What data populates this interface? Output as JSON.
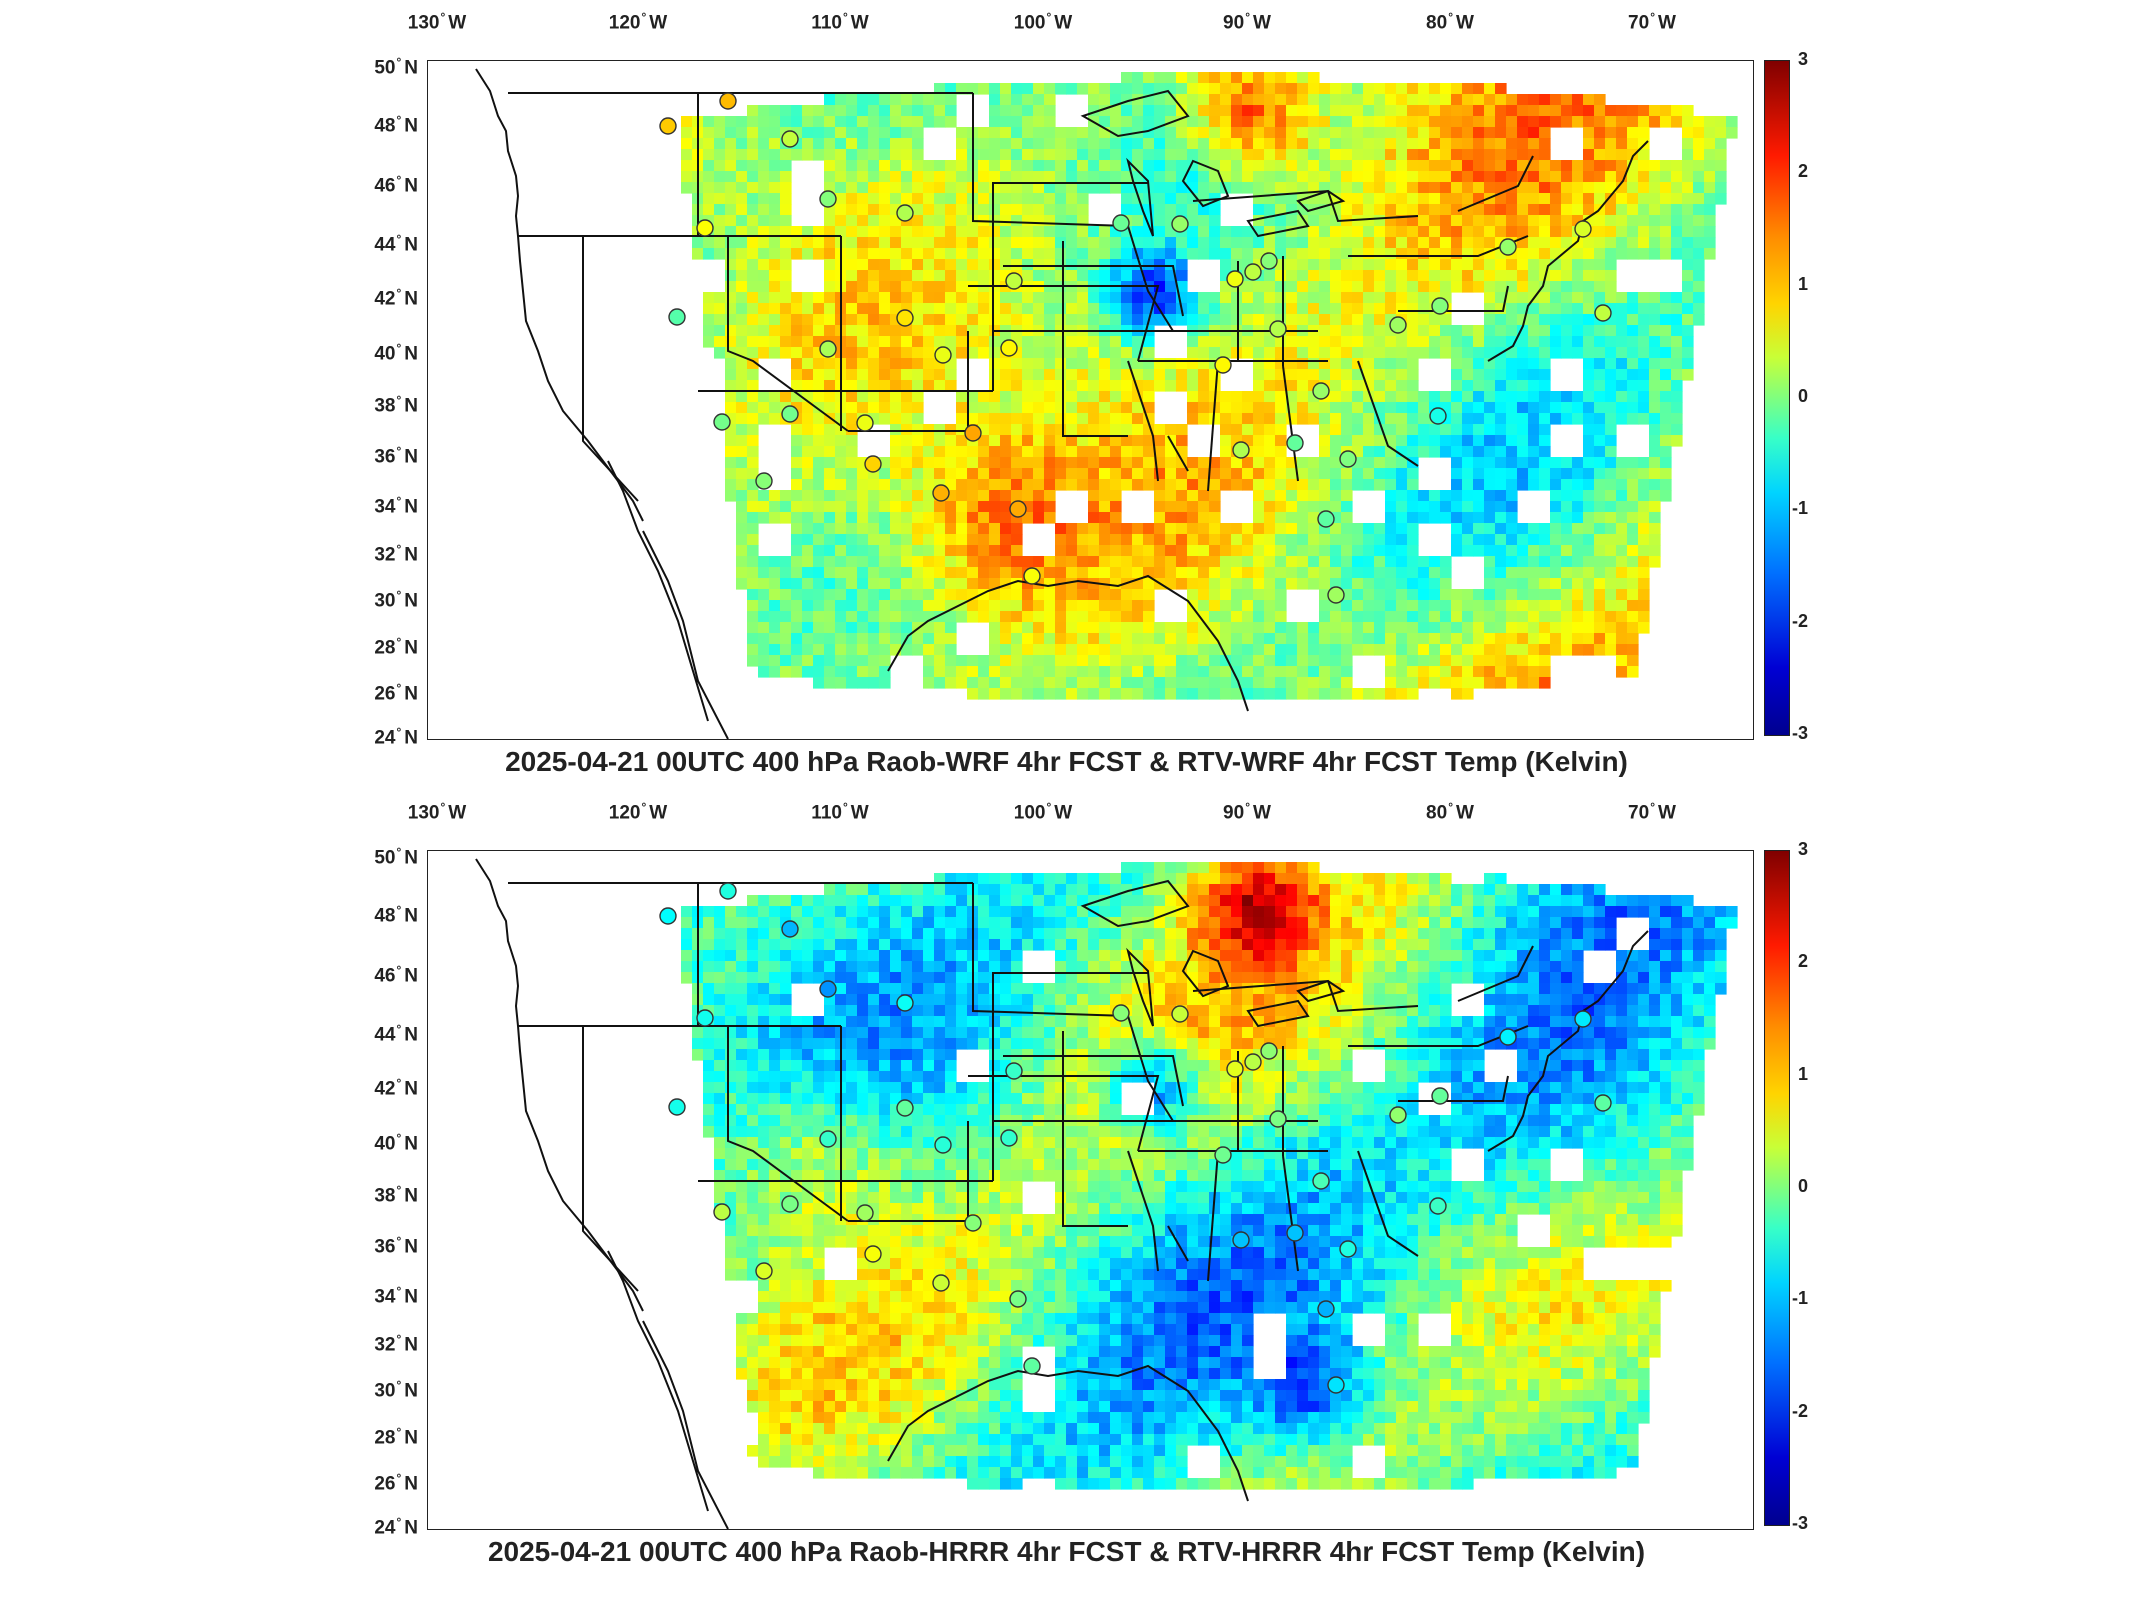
{
  "lon_ticks": [
    {
      "deg": "130",
      "hem": "W"
    },
    {
      "deg": "120",
      "hem": "W"
    },
    {
      "deg": "110",
      "hem": "W"
    },
    {
      "deg": "100",
      "hem": "W"
    },
    {
      "deg": "90",
      "hem": "W"
    },
    {
      "deg": "80",
      "hem": "W"
    },
    {
      "deg": "70",
      "hem": "W"
    }
  ],
  "lat_ticks": [
    {
      "deg": "50",
      "hem": "N"
    },
    {
      "deg": "48",
      "hem": "N"
    },
    {
      "deg": "46",
      "hem": "N"
    },
    {
      "deg": "44",
      "hem": "N"
    },
    {
      "deg": "42",
      "hem": "N"
    },
    {
      "deg": "40",
      "hem": "N"
    },
    {
      "deg": "38",
      "hem": "N"
    },
    {
      "deg": "36",
      "hem": "N"
    },
    {
      "deg": "34",
      "hem": "N"
    },
    {
      "deg": "32",
      "hem": "N"
    },
    {
      "deg": "30",
      "hem": "N"
    },
    {
      "deg": "28",
      "hem": "N"
    },
    {
      "deg": "26",
      "hem": "N"
    },
    {
      "deg": "24",
      "hem": "N"
    }
  ],
  "colorbar": {
    "ticks": [
      "3",
      "2",
      "1",
      "0",
      "-1",
      "-2",
      "-3"
    ],
    "range": [
      -3,
      3
    ],
    "colormap": "jet"
  },
  "maps": [
    {
      "title": "2025-04-21 00UTC 400 hPa Raob-WRF 4hr FCST & RTV-WRF 4hr FCST Temp (Kelvin)",
      "field_bias": 0.35
    },
    {
      "title": "2025-04-21 00UTC 400 hPa Raob-HRRR 4hr FCST & RTV-HRRR 4hr FCST Temp (Kelvin)",
      "field_bias": -0.25
    }
  ]
}
